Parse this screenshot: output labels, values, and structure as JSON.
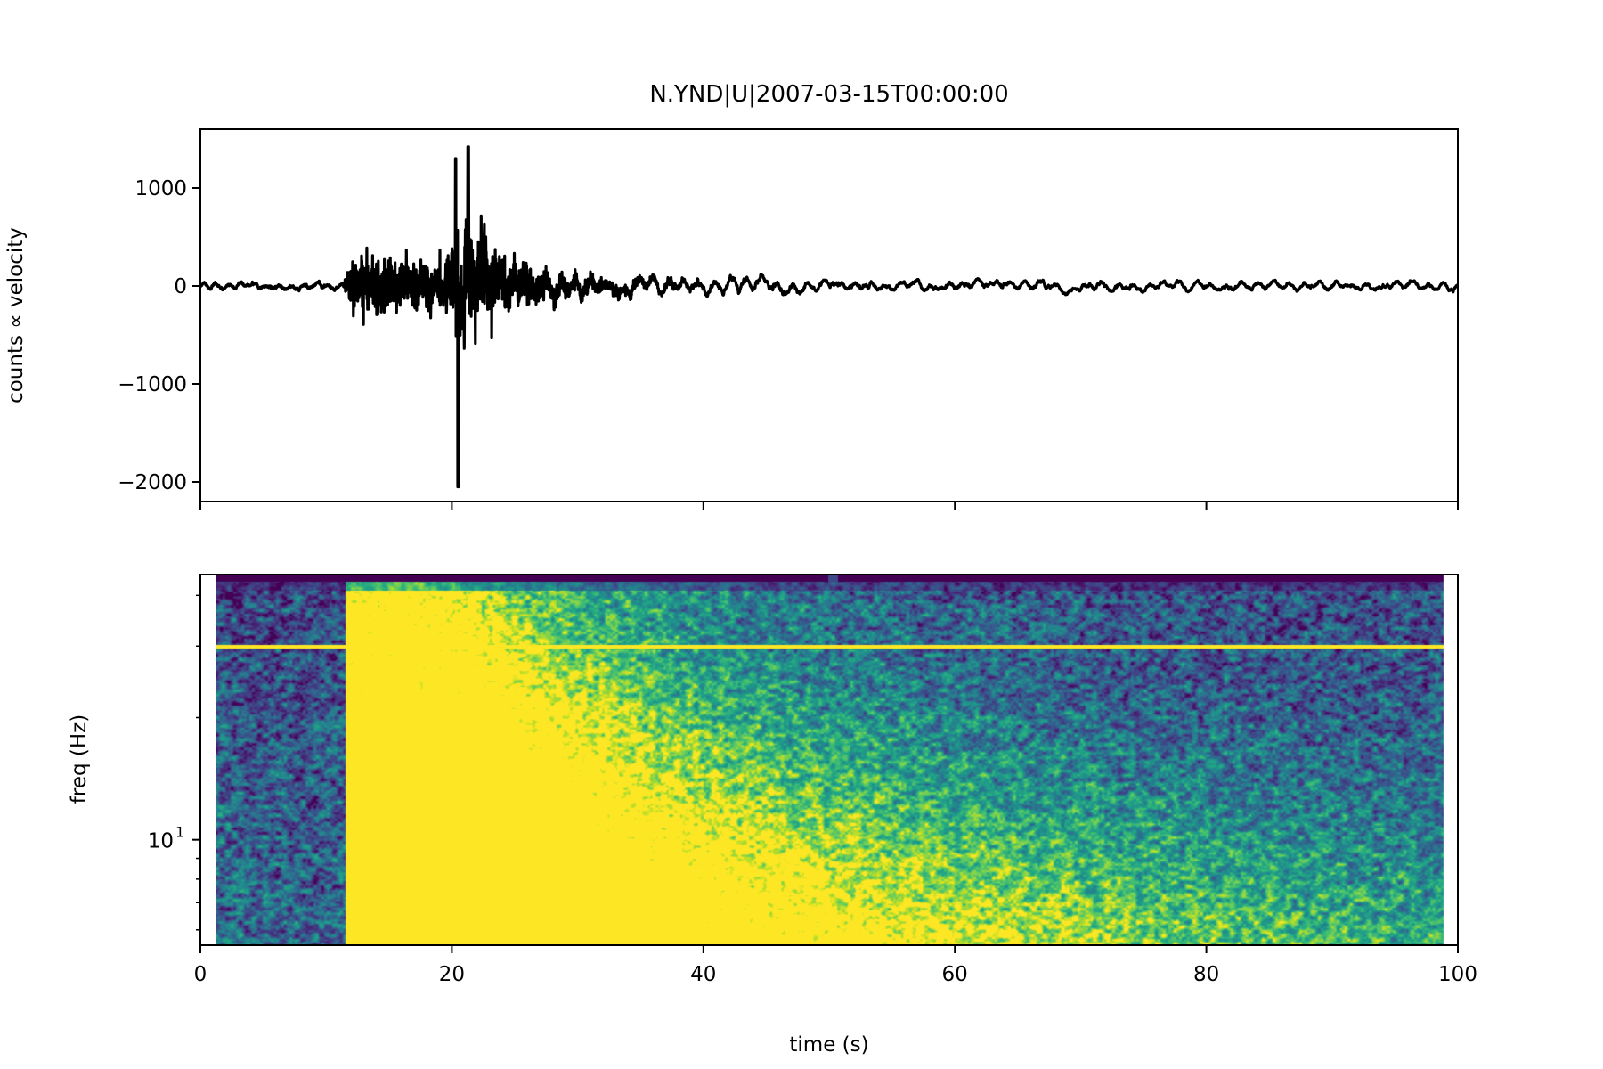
{
  "title": "N.YND|U|2007-03-15T00:00:00",
  "chart_data": [
    {
      "type": "line",
      "name": "waveform",
      "xlabel": "",
      "ylabel": "counts ∝ velocity",
      "xlim": [
        0,
        100
      ],
      "ylim": [
        -2200,
        1600
      ],
      "xticks": [
        0,
        20,
        40,
        60,
        80,
        100
      ],
      "yticks": [
        1000,
        0,
        -1000,
        -2000
      ],
      "ytick_labels": [
        "1000",
        "0",
        "−1000",
        "−2000"
      ],
      "line_color": "#000000",
      "envelope": {
        "t": [
          0,
          11.5,
          12,
          14,
          17,
          19.5,
          20.3,
          20.8,
          21.5,
          23,
          25,
          27,
          30,
          35,
          40,
          50,
          60,
          70,
          80,
          90,
          100
        ],
        "amp": [
          110,
          130,
          560,
          620,
          560,
          700,
          1350,
          2050,
          1450,
          1250,
          820,
          560,
          440,
          360,
          300,
          220,
          180,
          170,
          160,
          150,
          140
        ]
      },
      "peaks": {
        "max": 1420,
        "min": -2050,
        "t_max": 21.3,
        "t_min": 20.5
      },
      "onset_s": 11.5
    },
    {
      "type": "heatmap",
      "name": "spectrogram",
      "xlabel": "time (s)",
      "ylabel": "freq (Hz)",
      "xlim": [
        0,
        100
      ],
      "yscale": "log",
      "ylim": [
        5.5,
        45
      ],
      "xticks": [
        0,
        20,
        40,
        60,
        80,
        100
      ],
      "ytick_major": [
        {
          "value": 10,
          "base": "10",
          "exp": "1"
        }
      ],
      "ytick_minor": [
        6,
        7,
        8,
        9,
        20,
        30,
        40
      ],
      "colormap": "viridis",
      "data_extent_s": [
        1.2,
        98.8
      ],
      "nyquist_hz": 42,
      "constant_tone_hz": 30,
      "onset_s": 11.5,
      "strong_energy_until_s": 35
    }
  ]
}
